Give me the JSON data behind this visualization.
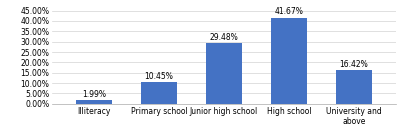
{
  "categories": [
    "Illiteracy",
    "Primary school",
    "Junior high school",
    "High school",
    "University and\nabove"
  ],
  "values": [
    1.99,
    10.45,
    29.48,
    41.67,
    16.42
  ],
  "labels": [
    "1.99%",
    "10.45%",
    "29.48%",
    "41.67%",
    "16.42%"
  ],
  "bar_color": "#4472C4",
  "ylim": [
    0,
    45
  ],
  "yticks": [
    0,
    5,
    10,
    15,
    20,
    25,
    30,
    35,
    40,
    45
  ],
  "ytick_labels": [
    "0.00%",
    "5.00%",
    "10.00%",
    "15.00%",
    "20.00%",
    "25.00%",
    "30.00%",
    "35.00%",
    "40.00%",
    "45.00%"
  ],
  "label_fontsize": 5.5,
  "tick_fontsize": 5.5,
  "bar_width": 0.55,
  "figsize": [
    4.0,
    1.33
  ],
  "dpi": 100
}
